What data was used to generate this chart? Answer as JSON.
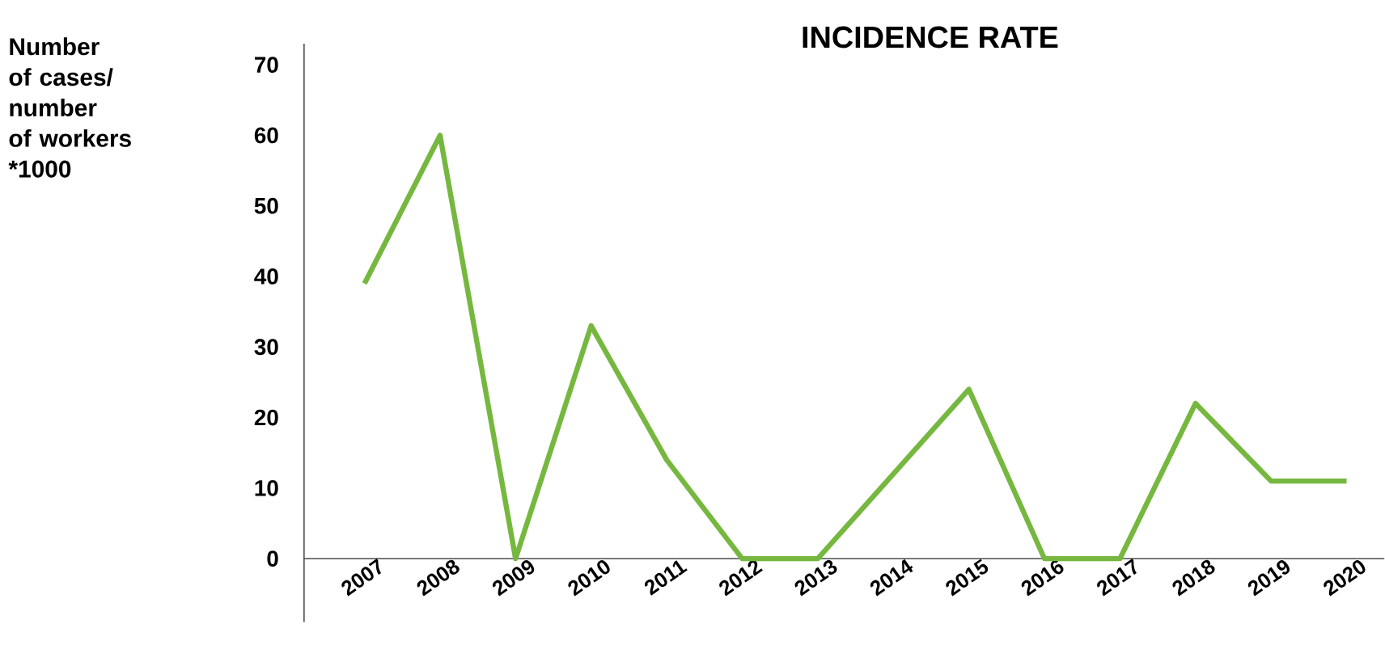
{
  "chart_data": {
    "type": "line",
    "title": "INCIDENCE RATE",
    "annotations": [
      "Number of cases/ number of workers *1000"
    ],
    "categories": [
      "2007",
      "2008",
      "2009",
      "2010",
      "2011",
      "2012",
      "2013",
      "2014",
      "2015",
      "2016",
      "2017",
      "2018",
      "2019",
      "2020"
    ],
    "values": [
      39,
      60,
      0,
      33,
      14,
      0,
      0,
      12,
      24,
      0,
      0,
      22,
      11,
      11
    ],
    "color": "#76b83f",
    "ylim": [
      -9,
      73
    ],
    "yticks": [
      0,
      10,
      20,
      30,
      40,
      50,
      60,
      70
    ],
    "grid": false,
    "marker": "none",
    "line_style": "solid"
  }
}
